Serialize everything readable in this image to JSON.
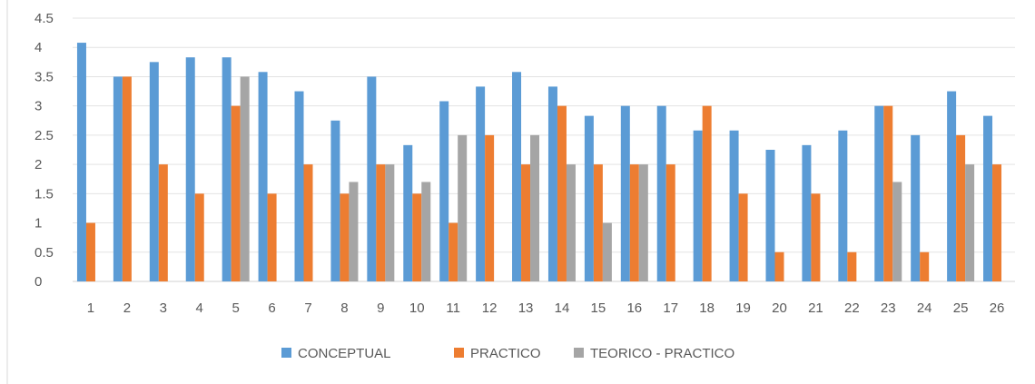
{
  "chart_data": {
    "type": "bar",
    "title": "",
    "xlabel": "",
    "ylabel": "",
    "ylim": [
      0,
      4.5
    ],
    "ytick_step": 0.5,
    "yticks": [
      "0",
      "0.5",
      "1",
      "1.5",
      "2",
      "2.5",
      "3",
      "3.5",
      "4",
      "4.5"
    ],
    "grid": true,
    "legend_position": "bottom",
    "categories": [
      "1",
      "2",
      "3",
      "4",
      "5",
      "6",
      "7",
      "8",
      "9",
      "10",
      "11",
      "12",
      "13",
      "14",
      "15",
      "16",
      "17",
      "18",
      "19",
      "20",
      "21",
      "22",
      "23",
      "24",
      "25",
      "26"
    ],
    "series": [
      {
        "name": "CONCEPTUAL",
        "color": "#5B9BD5",
        "values": [
          4.08,
          3.5,
          3.75,
          3.83,
          3.83,
          3.58,
          3.25,
          2.75,
          3.5,
          2.33,
          3.08,
          3.33,
          3.58,
          3.33,
          2.83,
          3.0,
          3.0,
          2.58,
          2.58,
          2.25,
          2.33,
          2.58,
          3.0,
          2.5,
          3.25,
          2.83
        ]
      },
      {
        "name": "PRACTICO",
        "color": "#ED7D31",
        "values": [
          1.0,
          3.5,
          2.0,
          1.5,
          3.0,
          1.5,
          2.0,
          1.5,
          2.0,
          1.5,
          1.0,
          2.5,
          2.0,
          3.0,
          2.0,
          2.0,
          2.0,
          3.0,
          1.5,
          0.5,
          1.5,
          0.5,
          3.0,
          0.5,
          2.5,
          2.0
        ]
      },
      {
        "name": "TEORICO - PRACTICO",
        "color": "#A5A5A5",
        "values": [
          0,
          0,
          0,
          0,
          3.5,
          0,
          0,
          1.7,
          2.0,
          1.7,
          2.5,
          0,
          2.5,
          2.0,
          1.0,
          2.0,
          0,
          0,
          0,
          0,
          0,
          0,
          1.7,
          0,
          2.0,
          0
        ]
      }
    ]
  }
}
